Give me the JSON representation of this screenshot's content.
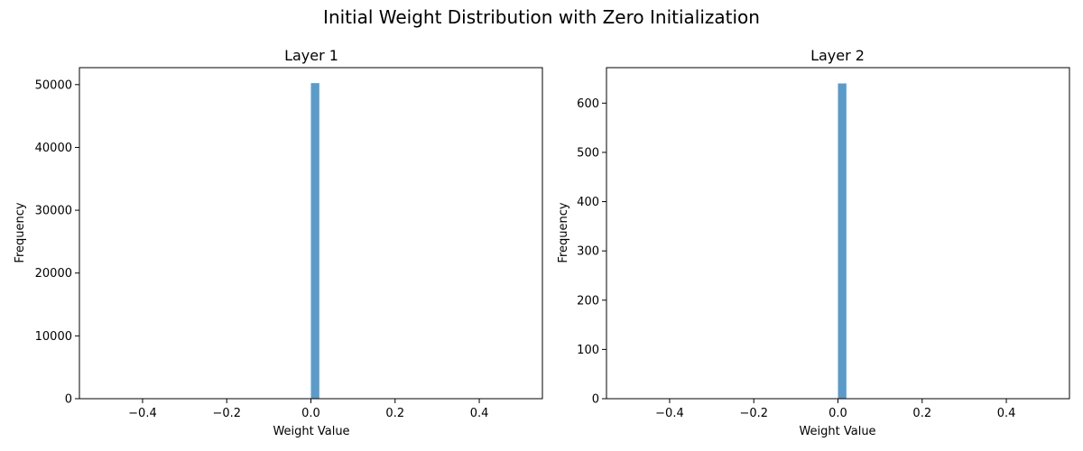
{
  "figure": {
    "title": "Initial Weight Distribution with Zero Initialization",
    "bar_color": "#5b9bc9"
  },
  "chart_data": [
    {
      "type": "bar",
      "title": "Layer 1",
      "xlabel": "Weight Value",
      "ylabel": "Frequency",
      "xlim": [
        -0.55,
        0.55
      ],
      "ylim": [
        0,
        52700
      ],
      "xticks": [
        -0.4,
        -0.2,
        0.0,
        0.2,
        0.4
      ],
      "xtick_labels": [
        "−0.4",
        "−0.2",
        "0.0",
        "0.2",
        "0.4"
      ],
      "yticks": [
        0,
        10000,
        20000,
        30000,
        40000,
        50000
      ],
      "ytick_labels": [
        "0",
        "10000",
        "20000",
        "30000",
        "40000",
        "50000"
      ],
      "bins": [
        {
          "x0": 0.0,
          "x1": 0.02,
          "value": 50240
        }
      ],
      "grid": false
    },
    {
      "type": "bar",
      "title": "Layer 2",
      "xlabel": "Weight Value",
      "ylabel": "Frequency",
      "xlim": [
        -0.55,
        0.55
      ],
      "ylim": [
        0,
        672
      ],
      "xticks": [
        -0.4,
        -0.2,
        0.0,
        0.2,
        0.4
      ],
      "xtick_labels": [
        "−0.4",
        "−0.2",
        "0.0",
        "0.2",
        "0.4"
      ],
      "yticks": [
        0,
        100,
        200,
        300,
        400,
        500,
        600
      ],
      "ytick_labels": [
        "0",
        "100",
        "200",
        "300",
        "400",
        "500",
        "600"
      ],
      "bins": [
        {
          "x0": 0.0,
          "x1": 0.02,
          "value": 640
        }
      ],
      "grid": false
    }
  ]
}
